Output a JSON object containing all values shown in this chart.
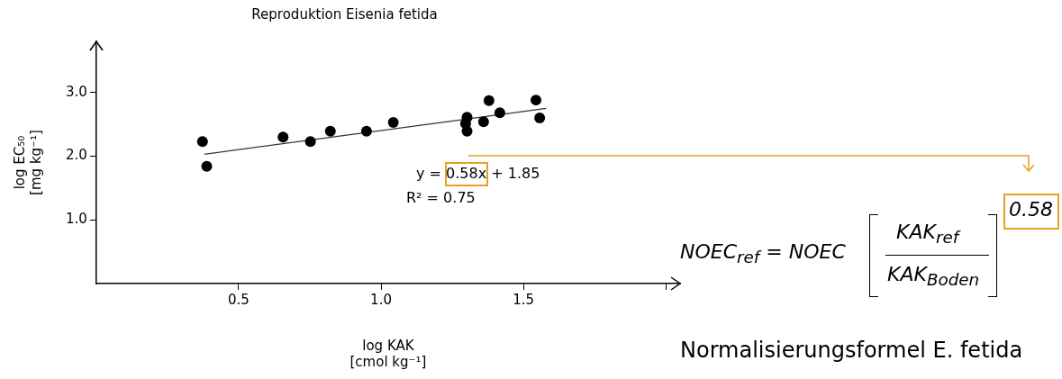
{
  "chart_data": {
    "type": "scatter",
    "title": "Reproduktion Eisenia fetida",
    "xlabel": "log KAK\n[cmol kg⁻¹]",
    "ylabel": "log EC₅₀\n[mg kg⁻¹]",
    "xlim": [
      0,
      2.05
    ],
    "xticks": [
      0.5,
      {
        "value": 1,
        "label": "1.0"
      },
      1.5,
      {
        "value": 2,
        "label": null
      }
    ],
    "ylim": [
      0,
      3.8
    ],
    "yticks": [
      {
        "value": 1,
        "label": "1.0"
      },
      {
        "value": 2,
        "label": "2.0"
      },
      {
        "value": 3,
        "label": "3.0"
      }
    ],
    "grid": false,
    "legend": false,
    "series": [
      {
        "marker": "circle",
        "color": "#000000",
        "x": [
          0.373,
          0.388,
          0.656,
          0.752,
          0.822,
          0.949,
          1.043,
          1.302,
          1.297,
          1.302,
          1.36,
          1.379,
          1.417,
          1.544,
          1.557
        ],
        "values": [
          2.23,
          1.84,
          2.3,
          2.23,
          2.39,
          2.39,
          2.53,
          2.61,
          2.51,
          2.39,
          2.54,
          2.87,
          2.68,
          2.88,
          2.6
        ]
      },
      {
        "type": "line",
        "color": "#333333",
        "x": [
          0.38,
          1.58
        ],
        "values": [
          2.03,
          2.75
        ]
      }
    ],
    "annotations": [
      "y = 0.58x + 1.85",
      "R² = 0.75",
      "NOEC$_{ref}$ = NOEC",
      "KAK$_{ref}$",
      "KAK$_{Boden}$",
      "0.58",
      "Normalisierungsformel E. fetida"
    ]
  }
}
